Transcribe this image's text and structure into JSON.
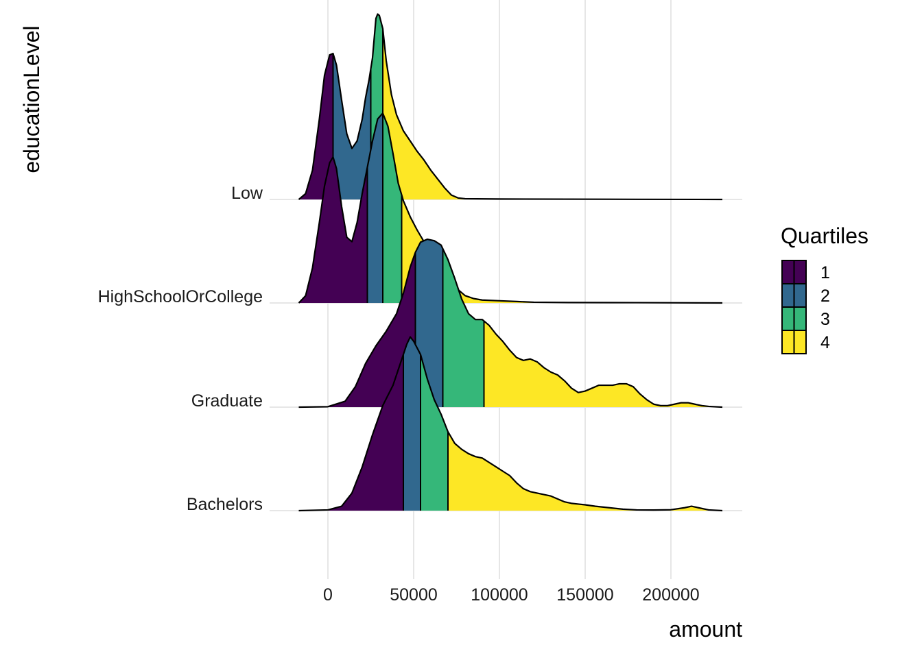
{
  "chart_data": {
    "type": "ridgeline",
    "xlabel": "amount",
    "ylabel": "educationLevel",
    "x_ticks": [
      0,
      50000,
      100000,
      150000,
      200000
    ],
    "x_tick_labels": [
      "0",
      "50000",
      "100000",
      "150000",
      "200000"
    ],
    "xlim": [
      -17000,
      231000
    ],
    "categories": [
      "Low",
      "HighSchoolOrCollege",
      "Graduate",
      "Bachelors"
    ],
    "grid": true,
    "legend": {
      "title": "Quartiles",
      "position": "right",
      "entries": [
        "1",
        "2",
        "3",
        "4"
      ],
      "colors": [
        "#440154",
        "#31688E",
        "#35B779",
        "#FDE725"
      ]
    },
    "series": [
      {
        "name": "Low",
        "quartile_cuts": [
          3000,
          25000,
          32000
        ],
        "density": [
          [
            -17000,
            0.0
          ],
          [
            -13000,
            0.04
          ],
          [
            -9000,
            0.2
          ],
          [
            -5000,
            0.55
          ],
          [
            -2000,
            0.85
          ],
          [
            1000,
            0.99
          ],
          [
            3000,
            1.0
          ],
          [
            5000,
            0.92
          ],
          [
            8000,
            0.68
          ],
          [
            11000,
            0.45
          ],
          [
            14000,
            0.35
          ],
          [
            17000,
            0.4
          ],
          [
            20000,
            0.55
          ],
          [
            22000,
            0.7
          ],
          [
            24000,
            0.82
          ],
          [
            26000,
            0.97
          ],
          [
            28000,
            1.24
          ],
          [
            29000,
            1.27
          ],
          [
            30000,
            1.26
          ],
          [
            32000,
            1.17
          ],
          [
            34000,
            0.95
          ],
          [
            37000,
            0.72
          ],
          [
            40000,
            0.58
          ],
          [
            44000,
            0.47
          ],
          [
            48000,
            0.4
          ],
          [
            52000,
            0.33
          ],
          [
            56000,
            0.27
          ],
          [
            60000,
            0.2
          ],
          [
            64000,
            0.14
          ],
          [
            68000,
            0.08
          ],
          [
            72000,
            0.03
          ],
          [
            76000,
            0.01
          ],
          [
            80000,
            0.005
          ],
          [
            100000,
            0.003
          ],
          [
            140000,
            0.002
          ],
          [
            180000,
            0.001
          ],
          [
            230000,
            0.0
          ]
        ]
      },
      {
        "name": "HighSchoolOrCollege",
        "quartile_cuts": [
          23000,
          32000,
          43000
        ],
        "density": [
          [
            -17000,
            0.0
          ],
          [
            -13000,
            0.05
          ],
          [
            -9000,
            0.24
          ],
          [
            -5000,
            0.55
          ],
          [
            -2000,
            0.8
          ],
          [
            1000,
            0.96
          ],
          [
            3000,
            1.0
          ],
          [
            5000,
            0.92
          ],
          [
            8000,
            0.66
          ],
          [
            11000,
            0.45
          ],
          [
            14000,
            0.42
          ],
          [
            17000,
            0.55
          ],
          [
            20000,
            0.75
          ],
          [
            23000,
            0.93
          ],
          [
            26000,
            1.11
          ],
          [
            29000,
            1.26
          ],
          [
            32000,
            1.3
          ],
          [
            35000,
            1.21
          ],
          [
            38000,
            1.02
          ],
          [
            41000,
            0.82
          ],
          [
            44000,
            0.7
          ],
          [
            48000,
            0.59
          ],
          [
            52000,
            0.5
          ],
          [
            56000,
            0.42
          ],
          [
            60000,
            0.35
          ],
          [
            64000,
            0.28
          ],
          [
            68000,
            0.21
          ],
          [
            72000,
            0.14
          ],
          [
            76000,
            0.09
          ],
          [
            80000,
            0.05
          ],
          [
            85000,
            0.03
          ],
          [
            90000,
            0.02
          ],
          [
            100000,
            0.015
          ],
          [
            110000,
            0.01
          ],
          [
            120000,
            0.005
          ],
          [
            140000,
            0.003
          ],
          [
            180000,
            0.002
          ],
          [
            230000,
            0.0
          ]
        ]
      },
      {
        "name": "Graduate",
        "quartile_cuts": [
          51000,
          67000,
          91000
        ],
        "density": [
          [
            -17000,
            0.0
          ],
          [
            0,
            0.003
          ],
          [
            10000,
            0.04
          ],
          [
            16000,
            0.14
          ],
          [
            22000,
            0.3
          ],
          [
            28000,
            0.42
          ],
          [
            34000,
            0.52
          ],
          [
            40000,
            0.64
          ],
          [
            44000,
            0.78
          ],
          [
            48000,
            0.96
          ],
          [
            51000,
            1.06
          ],
          [
            54000,
            1.13
          ],
          [
            58000,
            1.15
          ],
          [
            62000,
            1.14
          ],
          [
            66000,
            1.11
          ],
          [
            70000,
            1.01
          ],
          [
            74000,
            0.88
          ],
          [
            78000,
            0.74
          ],
          [
            82000,
            0.64
          ],
          [
            86000,
            0.6
          ],
          [
            90000,
            0.6
          ],
          [
            94000,
            0.56
          ],
          [
            98000,
            0.5
          ],
          [
            102000,
            0.45
          ],
          [
            106000,
            0.39
          ],
          [
            110000,
            0.34
          ],
          [
            114000,
            0.32
          ],
          [
            118000,
            0.33
          ],
          [
            122000,
            0.31
          ],
          [
            126000,
            0.27
          ],
          [
            130000,
            0.24
          ],
          [
            134000,
            0.22
          ],
          [
            138000,
            0.18
          ],
          [
            142000,
            0.13
          ],
          [
            146000,
            0.1
          ],
          [
            150000,
            0.11
          ],
          [
            154000,
            0.13
          ],
          [
            158000,
            0.15
          ],
          [
            162000,
            0.15
          ],
          [
            166000,
            0.15
          ],
          [
            170000,
            0.16
          ],
          [
            174000,
            0.16
          ],
          [
            178000,
            0.14
          ],
          [
            182000,
            0.09
          ],
          [
            186000,
            0.05
          ],
          [
            190000,
            0.02
          ],
          [
            194000,
            0.01
          ],
          [
            198000,
            0.01
          ],
          [
            202000,
            0.02
          ],
          [
            206000,
            0.03
          ],
          [
            210000,
            0.03
          ],
          [
            214000,
            0.02
          ],
          [
            218000,
            0.01
          ],
          [
            222000,
            0.005
          ],
          [
            230000,
            0.0
          ]
        ]
      },
      {
        "name": "Bachelors",
        "quartile_cuts": [
          44000,
          54000,
          70000
        ],
        "density": [
          [
            -17000,
            0.0
          ],
          [
            0,
            0.005
          ],
          [
            8000,
            0.03
          ],
          [
            14000,
            0.12
          ],
          [
            20000,
            0.3
          ],
          [
            26000,
            0.52
          ],
          [
            32000,
            0.72
          ],
          [
            38000,
            0.86
          ],
          [
            42000,
            1.0
          ],
          [
            46000,
            1.14
          ],
          [
            48000,
            1.19
          ],
          [
            50000,
            1.16
          ],
          [
            54000,
            1.07
          ],
          [
            58000,
            0.9
          ],
          [
            62000,
            0.76
          ],
          [
            66000,
            0.66
          ],
          [
            70000,
            0.54
          ],
          [
            74000,
            0.46
          ],
          [
            78000,
            0.42
          ],
          [
            82000,
            0.39
          ],
          [
            86000,
            0.37
          ],
          [
            90000,
            0.36
          ],
          [
            94000,
            0.33
          ],
          [
            98000,
            0.3
          ],
          [
            102000,
            0.27
          ],
          [
            106000,
            0.24
          ],
          [
            110000,
            0.19
          ],
          [
            114000,
            0.15
          ],
          [
            118000,
            0.13
          ],
          [
            122000,
            0.12
          ],
          [
            126000,
            0.11
          ],
          [
            130000,
            0.1
          ],
          [
            134000,
            0.08
          ],
          [
            138000,
            0.06
          ],
          [
            142000,
            0.05
          ],
          [
            146000,
            0.045
          ],
          [
            150000,
            0.04
          ],
          [
            156000,
            0.03
          ],
          [
            164000,
            0.02
          ],
          [
            172000,
            0.01
          ],
          [
            180000,
            0.005
          ],
          [
            190000,
            0.004
          ],
          [
            200000,
            0.006
          ],
          [
            208000,
            0.02
          ],
          [
            212000,
            0.03
          ],
          [
            216000,
            0.02
          ],
          [
            222000,
            0.005
          ],
          [
            230000,
            0.0
          ]
        ]
      }
    ]
  }
}
